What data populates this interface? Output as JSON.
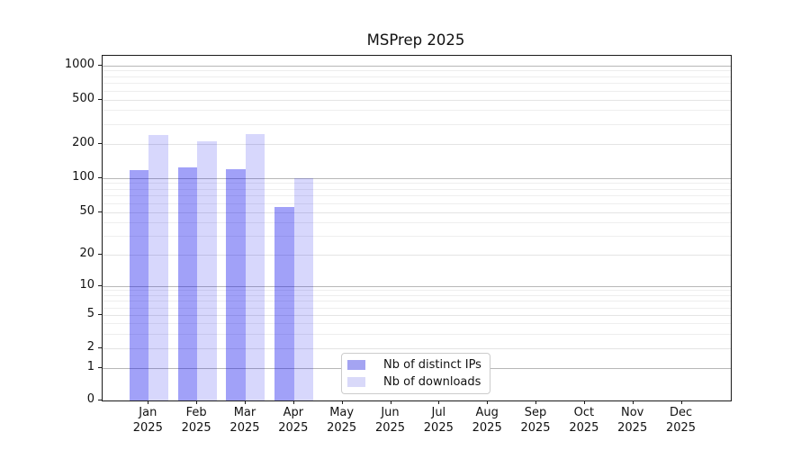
{
  "chart_data": {
    "type": "bar",
    "title": "MSPrep 2025",
    "x_tick_labels": [
      {
        "month": "Jan",
        "year": "2025"
      },
      {
        "month": "Feb",
        "year": "2025"
      },
      {
        "month": "Mar",
        "year": "2025"
      },
      {
        "month": "Apr",
        "year": "2025"
      },
      {
        "month": "May",
        "year": "2025"
      },
      {
        "month": "Jun",
        "year": "2025"
      },
      {
        "month": "Jul",
        "year": "2025"
      },
      {
        "month": "Aug",
        "year": "2025"
      },
      {
        "month": "Sep",
        "year": "2025"
      },
      {
        "month": "Oct",
        "year": "2025"
      },
      {
        "month": "Nov",
        "year": "2025"
      },
      {
        "month": "Dec",
        "year": "2025"
      }
    ],
    "series": [
      {
        "name": "Nb of distinct IPs",
        "bar_color": "rgba(0,0,235,0.37)",
        "legend_color": "#a4a4f2",
        "values": [
          116,
          124,
          119,
          56,
          0,
          0,
          0,
          0,
          0,
          0,
          0,
          0
        ]
      },
      {
        "name": "Nb of downloads",
        "bar_color": "rgba(0,0,235,0.155)",
        "legend_color": "#d9d9f9",
        "values": [
          237,
          209,
          244,
          100,
          0,
          0,
          0,
          0,
          0,
          0,
          0,
          0
        ]
      }
    ],
    "y_axis": {
      "scale": "symlog",
      "tick_labels": [
        "0",
        "1",
        "2",
        "5",
        "10",
        "20",
        "50",
        "100",
        "200",
        "500",
        "1000"
      ],
      "tick_values": [
        0,
        1,
        2,
        5,
        10,
        20,
        50,
        100,
        200,
        500,
        1000
      ],
      "ylim": [
        0,
        1230
      ]
    },
    "grid": "both",
    "legend_position": "lower center"
  }
}
